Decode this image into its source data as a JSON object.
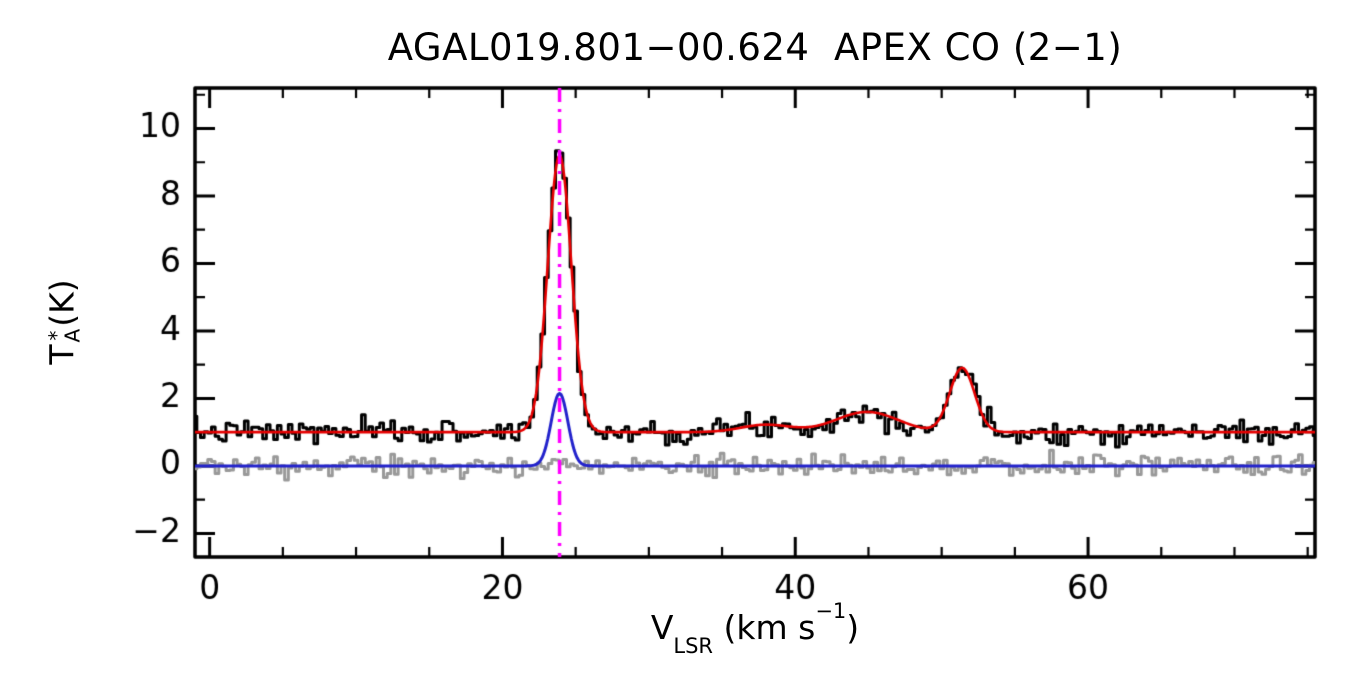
{
  "title": "AGAL019.801−00.624  APEX CO (2−1)",
  "axes": {
    "xlabel": {
      "base": "V",
      "sub": "LSR",
      "mid": " (km s",
      "sup": "−1",
      "end": ")"
    },
    "ylabel": {
      "base": "T",
      "sup": "*",
      "sub": "A",
      "unit": " (K)"
    }
  },
  "chart_data": {
    "type": "line",
    "title": "AGAL019.801−00.624  APEX CO (2−1)",
    "xlabel": "V_LSR (km s^-1)",
    "ylabel": "T_A^* (K)",
    "xlim": [
      -1,
      75.5
    ],
    "ylim": [
      -2.7,
      11.2
    ],
    "x_ticks": [
      0,
      20,
      40,
      60
    ],
    "y_ticks": [
      -2,
      0,
      2,
      4,
      6,
      8,
      10
    ],
    "x_minor_interval": 5,
    "y_minor_interval": 1,
    "grid": false,
    "legend": "none",
    "channel_width": 0.25,
    "noise_seed": 7,
    "series": [
      {
        "name": "observed-spectrum",
        "color": "#000000",
        "style": "histogram",
        "line_width": 3,
        "baseline": 1.0,
        "noise_rms": 0.17,
        "gaussians": [
          {
            "center": 23.9,
            "amplitude": 8.35,
            "fwhm": 1.9
          },
          {
            "center": 38.0,
            "amplitude": 0.22,
            "fwhm": 4.0
          },
          {
            "center": 44.9,
            "amplitude": 0.6,
            "fwhm": 5.0
          },
          {
            "center": 51.4,
            "amplitude": 1.95,
            "fwhm": 2.0
          }
        ]
      },
      {
        "name": "residual-spectrum",
        "color": "#999999",
        "style": "histogram",
        "line_width": 3,
        "baseline": 0.0,
        "noise_rms": 0.15,
        "gaussians": []
      },
      {
        "name": "component-fit",
        "color": "#2222cc",
        "style": "line",
        "line_width": 3,
        "baseline": 0.0,
        "noise_rms": 0,
        "gaussians": [
          {
            "center": 23.9,
            "amplitude": 2.15,
            "fwhm": 1.35
          }
        ]
      },
      {
        "name": "total-model-fit",
        "color": "#e60000",
        "style": "line",
        "line_width": 2.6,
        "baseline": 1.0,
        "noise_rms": 0,
        "gaussians": [
          {
            "center": 23.9,
            "amplitude": 8.2,
            "fwhm": 1.9
          },
          {
            "center": 38.0,
            "amplitude": 0.22,
            "fwhm": 4.0
          },
          {
            "center": 44.9,
            "amplitude": 0.6,
            "fwhm": 5.0
          },
          {
            "center": 51.4,
            "amplitude": 1.9,
            "fwhm": 2.0
          }
        ]
      }
    ],
    "vline": {
      "x": 23.9,
      "color": "#ff00ff",
      "style": "dash-dot",
      "line_width": 3.5
    }
  }
}
